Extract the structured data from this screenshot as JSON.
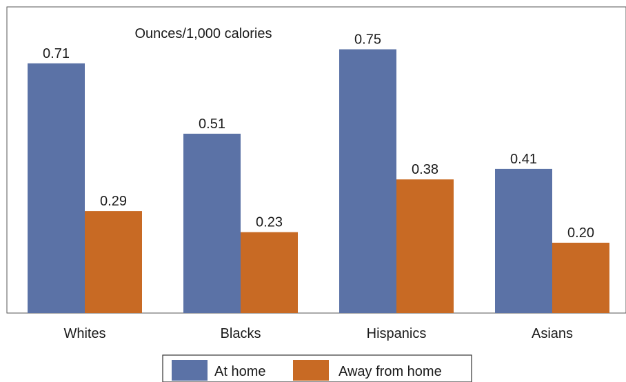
{
  "chart_data": {
    "type": "bar",
    "title": "",
    "xlabel": "",
    "ylabel": "",
    "unit_label": "Ounces/1,000 calories",
    "categories": [
      "Whites",
      "Blacks",
      "Hispanics",
      "Asians"
    ],
    "series": [
      {
        "name": "At home",
        "values": [
          0.71,
          0.51,
          0.75,
          0.41
        ],
        "labels": [
          "0.71",
          "0.51",
          "0.75",
          "0.41"
        ]
      },
      {
        "name": "Away from home",
        "values": [
          0.29,
          0.23,
          0.38,
          0.2
        ],
        "labels": [
          "0.29",
          "0.23",
          "0.38",
          "0.20"
        ]
      }
    ],
    "ylim": [
      0,
      0.8
    ],
    "grid": false,
    "legend_position": "bottom",
    "colors": {
      "At home": "#5b72a6",
      "Away from home": "#c86a24"
    }
  }
}
